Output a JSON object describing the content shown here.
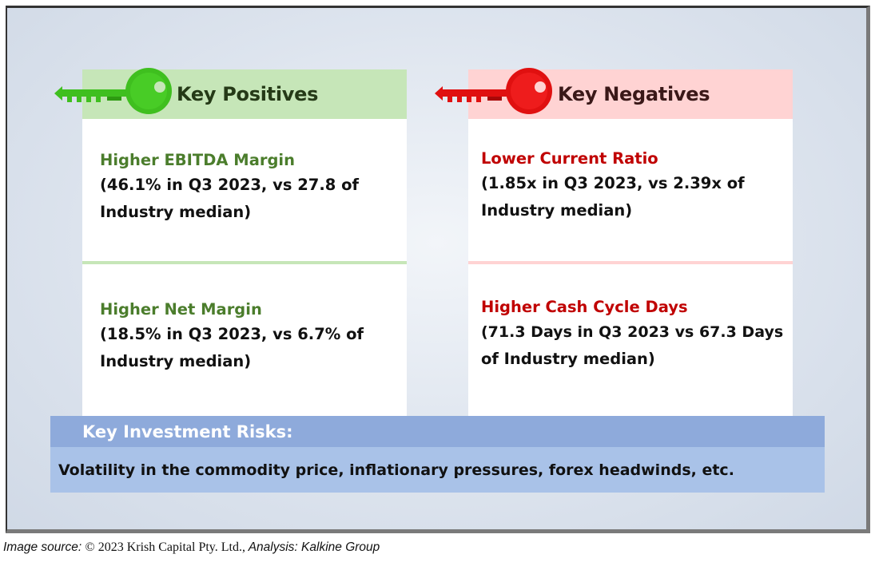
{
  "positives": {
    "header": "Key Positives",
    "key_color": "#3fbf1f",
    "items": [
      {
        "title": "Higher EBITDA Margin",
        "line1": "(46.1% in Q3 2023, vs 27.8 of",
        "line2": "Industry median)"
      },
      {
        "title": "Higher Net Margin",
        "line1": "(18.5% in Q3 2023, vs 6.7% of",
        "line2": "Industry median)"
      }
    ]
  },
  "negatives": {
    "header": "Key Negatives",
    "key_color": "#e01010",
    "items": [
      {
        "title": "Lower Current Ratio",
        "line1": "(1.85x in Q3 2023, vs 2.39x of",
        "line2": "Industry median)"
      },
      {
        "title": "Higher Cash Cycle Days",
        "line1": "(71.3 Days in Q3 2023 vs 67.3 Days",
        "line2": "of Industry median)"
      }
    ]
  },
  "risks": {
    "title": "Key Investment Risks:",
    "text": "Volatility in the commodity price, inflationary pressures, forex headwinds, etc."
  },
  "source": {
    "label": "Image source: ",
    "copyright": "© 2023 Krish Capital Pty. Ltd.,",
    "analysis": " Analysis: Kalkine Group"
  }
}
